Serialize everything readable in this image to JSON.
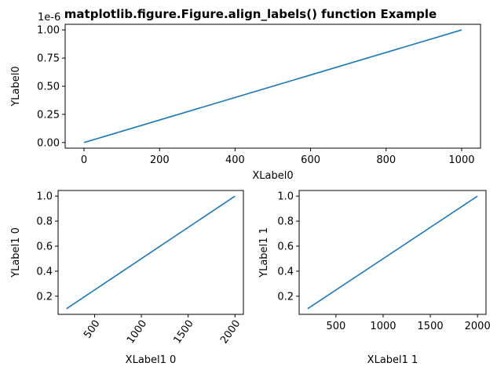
{
  "title": "matplotlib.figure.Figure.align_labels() function Example",
  "colors": {
    "line": "#1f77b4",
    "axes": "#000000",
    "background": "#ffffff"
  },
  "chart_data": [
    {
      "id": "top",
      "type": "line",
      "title": "",
      "xlabel": "XLabel0",
      "ylabel": "YLabel0",
      "xlim": [
        -50,
        1050
      ],
      "ylim": [
        -0.05,
        1.05
      ],
      "xticks": [
        0,
        200,
        400,
        600,
        800,
        1000
      ],
      "yticks": [
        0.0,
        0.25,
        0.5,
        0.75,
        1.0
      ],
      "xtick_labels": [
        "0",
        "200",
        "400",
        "600",
        "800",
        "1000"
      ],
      "ytick_labels": [
        "0.00",
        "0.25",
        "0.50",
        "0.75",
        "1.00"
      ],
      "offset_text": "1e-6",
      "grid": false,
      "series": [
        {
          "x": [
            0,
            1000
          ],
          "y": [
            0.0,
            1.0
          ]
        }
      ]
    },
    {
      "id": "bottom-left",
      "type": "line",
      "title": "",
      "xlabel": "XLabel1 0",
      "ylabel": "YLabel1 0",
      "xlim": [
        110,
        2090
      ],
      "ylim": [
        0.055,
        1.045
      ],
      "xticks": [
        500,
        1000,
        1500,
        2000
      ],
      "yticks": [
        0.2,
        0.4,
        0.6,
        0.8,
        1.0
      ],
      "xtick_labels": [
        "500",
        "1000",
        "1500",
        "2000"
      ],
      "ytick_labels": [
        "0.2",
        "0.4",
        "0.6",
        "0.8",
        "1.0"
      ],
      "xtick_rotation": 55,
      "grid": false,
      "series": [
        {
          "x": [
            200,
            2000
          ],
          "y": [
            0.1,
            1.0
          ]
        }
      ]
    },
    {
      "id": "bottom-right",
      "type": "line",
      "title": "",
      "xlabel": "XLabel1 1",
      "ylabel": "YLabel1 1",
      "xlim": [
        110,
        2090
      ],
      "ylim": [
        0.055,
        1.045
      ],
      "xticks": [
        500,
        1000,
        1500,
        2000
      ],
      "yticks": [
        0.2,
        0.4,
        0.6,
        0.8,
        1.0
      ],
      "xtick_labels": [
        "500",
        "1000",
        "1500",
        "2000"
      ],
      "ytick_labels": [
        "0.2",
        "0.4",
        "0.6",
        "0.8",
        "1.0"
      ],
      "xtick_rotation": 0,
      "grid": false,
      "series": [
        {
          "x": [
            200,
            2000
          ],
          "y": [
            0.1,
            1.0
          ]
        }
      ]
    }
  ]
}
